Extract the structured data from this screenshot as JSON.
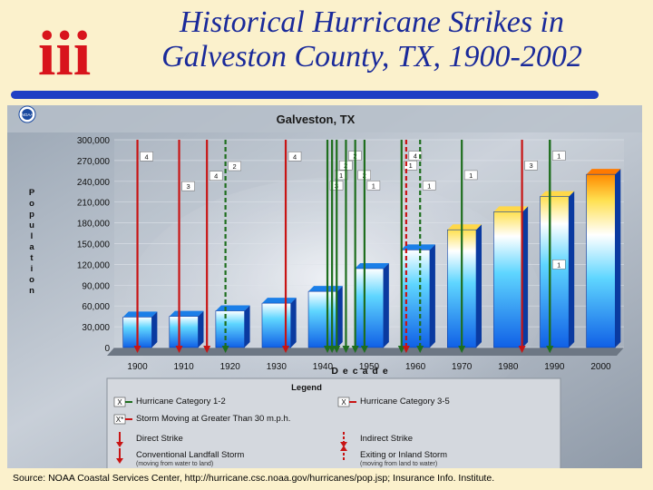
{
  "slide": {
    "title_line1": "Historical Hurricane Strikes in",
    "title_line2": "Galveston County, TX, 1900-2002",
    "logo_text": "iii",
    "source": "Source: NOAA Coastal Services Center, http://hurricane.csc.noaa.gov/hurricanes/pop.jsp; Insurance Info. Institute.",
    "colors": {
      "title": "#1a2a9a",
      "rule": "#1f3fc4",
      "logo": "#d8141c",
      "background": "#fbf1cc"
    }
  },
  "chart_data": {
    "type": "bar",
    "title": "Galveston, TX",
    "badge": "NOAA",
    "xlabel": "Decade",
    "ylabel": "Population",
    "categories": [
      "1900",
      "1910",
      "1920",
      "1930",
      "1940",
      "1950",
      "1960",
      "1970",
      "1980",
      "1990",
      "2000"
    ],
    "values": [
      44000,
      45000,
      53000,
      64000,
      81000,
      114000,
      141000,
      170000,
      196000,
      218000,
      250000
    ],
    "ylim": [
      0,
      300000
    ],
    "yticks": [
      0,
      30000,
      60000,
      90000,
      120000,
      150000,
      180000,
      210000,
      240000,
      270000,
      300000
    ],
    "ytick_labels": [
      "0",
      "30,000",
      "60,000",
      "90,000",
      "120,000",
      "150,000",
      "180,000",
      "210,000",
      "240,000",
      "270,000",
      "300,000"
    ],
    "bar_colors": {
      "top": "#ffffff",
      "bottom": "#1060e6",
      "recent_top": "#ffe050",
      "recent_tops_from": "1970"
    },
    "storms": [
      {
        "year": 1900,
        "strike": "direct",
        "severity": "major",
        "category": "4",
        "label_y": 276000
      },
      {
        "year": 1909,
        "strike": "direct",
        "severity": "major",
        "category": "3",
        "label_y": 233000
      },
      {
        "year": 1915,
        "strike": "direct",
        "severity": "major",
        "category": "4",
        "label_y": 248000
      },
      {
        "year": 1919,
        "strike": "indirect",
        "severity": "minor",
        "category": "2",
        "label_y": 262000
      },
      {
        "year": 1932,
        "strike": "direct",
        "severity": "major",
        "category": "4",
        "label_y": 276000
      },
      {
        "year": 1941,
        "strike": "direct",
        "severity": "minor",
        "category": "3",
        "label_y": 234000
      },
      {
        "year": 1942,
        "strike": "direct",
        "severity": "minor",
        "category": "1",
        "label_y": 249000
      },
      {
        "year": 1943,
        "strike": "direct",
        "severity": "minor",
        "category": "2",
        "label_y": 263000
      },
      {
        "year": 1945,
        "strike": "direct",
        "severity": "minor",
        "category": "2",
        "label_y": 277000
      },
      {
        "year": 1947,
        "strike": "direct",
        "severity": "minor",
        "category": "2",
        "label_y": 249000
      },
      {
        "year": 1949,
        "strike": "direct",
        "severity": "minor",
        "category": "1",
        "label_y": 234000
      },
      {
        "year": 1957,
        "strike": "direct",
        "severity": "minor",
        "category": "1",
        "label_y": 263000
      },
      {
        "year": 1958,
        "strike": "indirect",
        "severity": "major",
        "category": "4",
        "label_y": 277000
      },
      {
        "year": 1961,
        "strike": "indirect",
        "severity": "minor",
        "category": "1",
        "label_y": 234000
      },
      {
        "year": 1970,
        "strike": "direct",
        "severity": "minor",
        "category": "1",
        "label_y": 249000
      },
      {
        "year": 1983,
        "strike": "direct",
        "severity": "major",
        "category": "3",
        "label_y": 263000
      },
      {
        "year": 1989,
        "strike": "direct",
        "severity": "minor",
        "category": "1",
        "label_y": 277000
      },
      {
        "year": 1989,
        "strike": "direct",
        "severity": "minor",
        "category": "1",
        "label_y": 120000
      }
    ],
    "legend": {
      "title": "Legend",
      "items": [
        {
          "symbol": "green-x",
          "label": "Hurricane Category 1-2"
        },
        {
          "symbol": "red-x",
          "label": "Hurricane Category 3-5"
        },
        {
          "symbol": "red-x-star",
          "label": "Storm Moving at Greater Than 30 m.p.h."
        },
        {
          "symbol": "solid-arrow",
          "label": "Direct Strike"
        },
        {
          "symbol": "dashed-arrow",
          "label": "Indirect Strike"
        },
        {
          "symbol": "solid-arrow",
          "label": "Conventional Landfall Storm",
          "sub": "(moving from water to land)"
        },
        {
          "symbol": "dashed-arrow-up",
          "label": "Exiting or Inland Storm",
          "sub": "(moving from land to water)"
        }
      ]
    }
  }
}
